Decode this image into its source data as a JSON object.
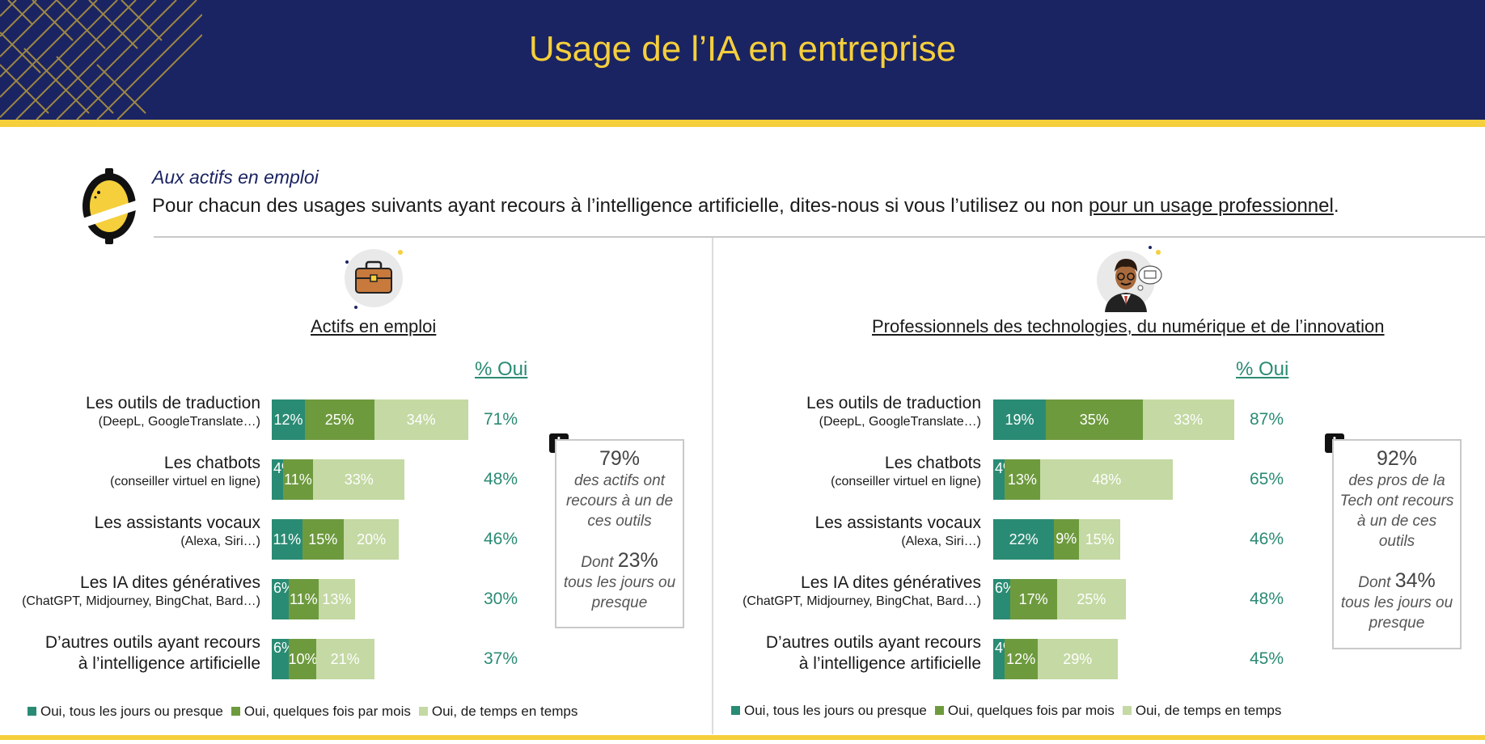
{
  "header": {
    "title": "Usage de l’IA en entreprise"
  },
  "question": {
    "label": "Aux actifs en emploi",
    "text_before": "Pour chacun des usages suivants ayant recours à l’intelligence artificielle, dites-nous si vous l’utilisez ou non ",
    "text_underlined": "pour un usage professionnel",
    "text_after": "."
  },
  "colors": {
    "daily": "#2a8b74",
    "monthly": "#6e9a3e",
    "sometimes": "#c4d9a3",
    "accent": "#f5cf3c",
    "navy": "#1b2462"
  },
  "chart_data": [
    {
      "type": "bar",
      "stacked": true,
      "orientation": "horizontal",
      "title": "Actifs en emploi",
      "total_header": "% Oui",
      "categories": [
        {
          "label": "Les outils de traduction",
          "sub": "(DeepL, GoogleTranslate…)"
        },
        {
          "label": "Les chatbots",
          "sub": "(conseiller virtuel en ligne)"
        },
        {
          "label": "Les assistants vocaux",
          "sub": "(Alexa, Siri…)"
        },
        {
          "label": "Les IA dites génératives",
          "sub": "(ChatGPT, Midjourney, BingChat, Bard…)"
        },
        {
          "label": "D’autres outils ayant recours",
          "sub": "à l’intelligence artificielle"
        }
      ],
      "series": [
        {
          "name": "Oui, tous les jours ou presque",
          "values": [
            12,
            4,
            11,
            6,
            6
          ]
        },
        {
          "name": "Oui, quelques fois par mois",
          "values": [
            25,
            11,
            15,
            11,
            10
          ]
        },
        {
          "name": "Oui, de temps en temps",
          "values": [
            34,
            33,
            20,
            13,
            21
          ]
        }
      ],
      "totals": [
        71,
        48,
        46,
        30,
        37
      ],
      "info": {
        "big": "79%",
        "text": "des actifs ont recours à un de ces outils",
        "dont_prefix": "Dont",
        "dont_value": "23%",
        "dont_text": "tous les jours ou presque"
      }
    },
    {
      "type": "bar",
      "stacked": true,
      "orientation": "horizontal",
      "title": "Professionnels des technologies, du numérique et de l’innovation",
      "total_header": "% Oui",
      "categories": [
        {
          "label": "Les outils de traduction",
          "sub": "(DeepL, GoogleTranslate…)"
        },
        {
          "label": "Les chatbots",
          "sub": "(conseiller virtuel en ligne)"
        },
        {
          "label": "Les assistants vocaux",
          "sub": "(Alexa, Siri…)"
        },
        {
          "label": "Les IA dites génératives",
          "sub": "(ChatGPT, Midjourney, BingChat, Bard…)"
        },
        {
          "label": "D’autres outils ayant recours",
          "sub": "à l’intelligence artificielle"
        }
      ],
      "series": [
        {
          "name": "Oui, tous les jours ou presque",
          "values": [
            19,
            4,
            22,
            6,
            4
          ]
        },
        {
          "name": "Oui, quelques fois par mois",
          "values": [
            35,
            13,
            9,
            17,
            12
          ]
        },
        {
          "name": "Oui, de temps en temps",
          "values": [
            33,
            48,
            15,
            25,
            29
          ]
        }
      ],
      "totals": [
        87,
        65,
        46,
        48,
        45
      ],
      "info": {
        "big": "92%",
        "text": "des pros de la Tech ont recours à un de ces outils",
        "dont_prefix": "Dont",
        "dont_value": "34%",
        "dont_text": "tous les jours ou presque"
      }
    }
  ]
}
